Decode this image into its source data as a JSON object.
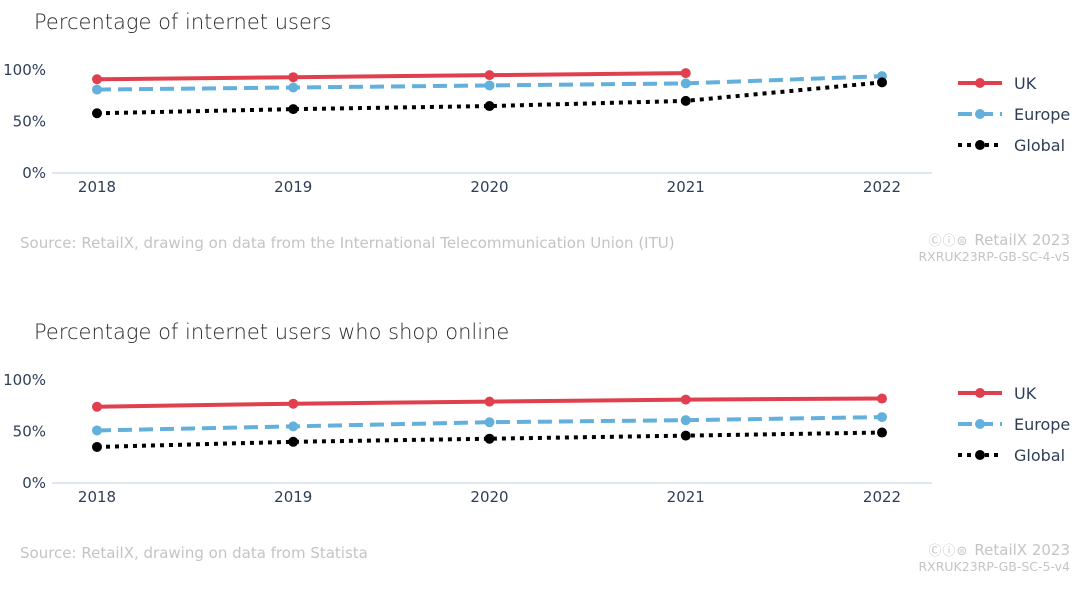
{
  "chart_data": [
    {
      "type": "line",
      "title": "Percentage of internet users",
      "categories": [
        "2018",
        "2019",
        "2020",
        "2021",
        "2022"
      ],
      "ylim": [
        0,
        100
      ],
      "yticks": [
        "0%",
        "50%",
        "100%"
      ],
      "series": [
        {
          "name": "UK",
          "color": "#e0404d",
          "dash": "solid",
          "values": [
            91,
            93,
            95,
            97,
            null
          ]
        },
        {
          "name": "Europe",
          "color": "#63b0dc",
          "dash": "dashed",
          "values": [
            81,
            83,
            85,
            87,
            94
          ]
        },
        {
          "name": "Global",
          "color": "#000000",
          "dash": "dotted",
          "values": [
            58,
            62,
            65,
            70,
            88
          ]
        }
      ],
      "legend_position": "right",
      "source": "Source: RetailX, drawing on data from the International Telecommunication Union (ITU)",
      "credit": "RetailX 2023",
      "credit_icons": "Ⓒⓘ⊜",
      "chart_code": "RXRUK23RP-GB-SC-4-v5"
    },
    {
      "type": "line",
      "title": "Percentage of internet users who shop online",
      "categories": [
        "2018",
        "2019",
        "2020",
        "2021",
        "2022"
      ],
      "ylim": [
        0,
        100
      ],
      "yticks": [
        "0%",
        "50%",
        "100%"
      ],
      "series": [
        {
          "name": "UK",
          "color": "#e0404d",
          "dash": "solid",
          "values": [
            74,
            77,
            79,
            81,
            82
          ]
        },
        {
          "name": "Europe",
          "color": "#63b0dc",
          "dash": "dashed",
          "values": [
            51,
            55,
            59,
            61,
            64
          ]
        },
        {
          "name": "Global",
          "color": "#000000",
          "dash": "dotted",
          "values": [
            35,
            40,
            43,
            46,
            49
          ]
        }
      ],
      "legend_position": "right",
      "source": "Source: RetailX, drawing on data from Statista",
      "credit": "RetailX 2023",
      "credit_icons": "Ⓒⓘ⊜",
      "chart_code": "RXRUK23RP-GB-SC-5-v4"
    }
  ]
}
